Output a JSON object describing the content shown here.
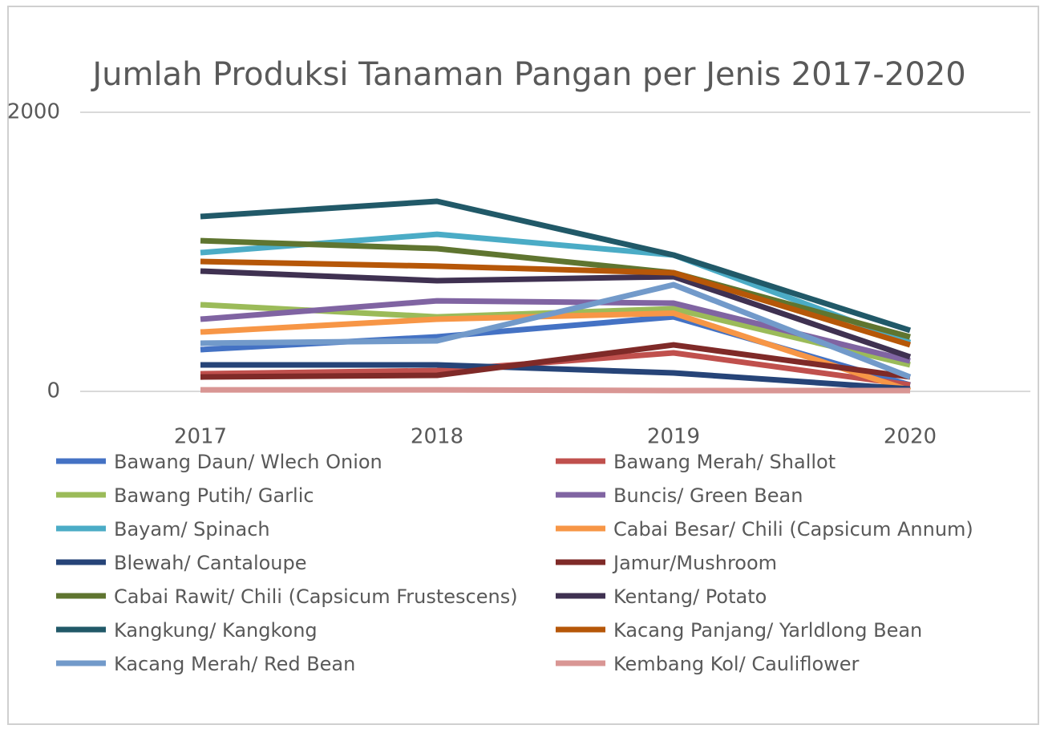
{
  "chart_data": {
    "type": "line",
    "title": "Jumlah Produksi Tanaman Pangan per Jenis 2017-2020",
    "categories": [
      "2017",
      "2018",
      "2019",
      "2020"
    ],
    "ylim": [
      0,
      2000
    ],
    "yticks": [
      0,
      2000
    ],
    "grid": true,
    "series": [
      {
        "name": "Bawang Daun/ Wlech Onion",
        "color": "#4472c4",
        "values": [
          299,
          391,
          534,
          46
        ]
      },
      {
        "name": "Bawang Merah/ Shallot",
        "color": "#c0504d",
        "values": [
          126,
          149,
          276,
          46
        ]
      },
      {
        "name": "Bawang Putih/ Garlic",
        "color": "#9bbb59",
        "values": [
          621,
          534,
          592,
          190
        ]
      },
      {
        "name": "Buncis/ Green Bean",
        "color": "#8064a2",
        "values": [
          517,
          649,
          632,
          218
        ]
      },
      {
        "name": "Bayam/ Spinach",
        "color": "#4bacc6",
        "values": [
          994,
          1126,
          977,
          350
        ]
      },
      {
        "name": "Cabai Besar/ Chili (Capsicum Annum)",
        "color": "#f79646",
        "values": [
          425,
          517,
          560,
          6
        ]
      },
      {
        "name": "Blewah/ Cantaloupe",
        "color": "#264478",
        "values": [
          190,
          190,
          132,
          17
        ]
      },
      {
        "name": "Jamur/Mushroom",
        "color": "#7f2a28",
        "values": [
          103,
          115,
          333,
          103
        ]
      },
      {
        "name": "Cabai Rawit/ Chili (Capsicum Frustescens)",
        "color": "#5f7530",
        "values": [
          1080,
          1023,
          850,
          390
        ]
      },
      {
        "name": "Kentang/ Potato",
        "color": "#3f3151",
        "values": [
          862,
          793,
          822,
          247
        ]
      },
      {
        "name": "Kangkung/ Kangkong",
        "color": "#215968",
        "values": [
          1253,
          1362,
          977,
          437
        ]
      },
      {
        "name": "Kacang Panjang/ Yarldlong Bean",
        "color": "#b65708",
        "values": [
          931,
          897,
          850,
          333
        ]
      },
      {
        "name": "Kacang Merah/ Red Bean",
        "color": "#729aca",
        "values": [
          345,
          362,
          764,
          103
        ]
      },
      {
        "name": "Kembang Kol/ Cauliflower",
        "color": "#d99694",
        "values": [
          11,
          11,
          6,
          6
        ]
      }
    ]
  }
}
